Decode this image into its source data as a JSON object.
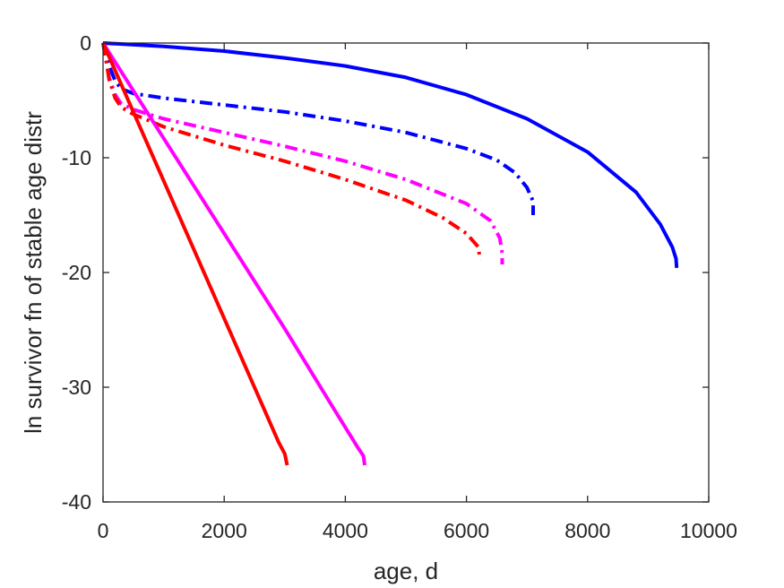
{
  "chart_data": {
    "type": "line",
    "title": "",
    "xlabel": "age, d",
    "ylabel": "ln survivor fn of stable age distr",
    "xlim": [
      0,
      10000
    ],
    "ylim": [
      -40,
      0
    ],
    "xticks": [
      0,
      2000,
      4000,
      6000,
      8000,
      10000
    ],
    "xtick_labels": [
      "0",
      "2000",
      "4000",
      "6000",
      "8000",
      "10000"
    ],
    "yticks": [
      0,
      -10,
      -20,
      -30,
      -40
    ],
    "ytick_labels": [
      "0",
      "-10",
      "-20",
      "-30",
      "-40"
    ],
    "grid": false,
    "legend": "none",
    "series": [
      {
        "color": "#0000ff",
        "dash": "solid",
        "points": [
          [
            0,
            0
          ],
          [
            1000,
            -0.3
          ],
          [
            2000,
            -0.7
          ],
          [
            3000,
            -1.3
          ],
          [
            4000,
            -2.0
          ],
          [
            5000,
            -3.0
          ],
          [
            6000,
            -4.5
          ],
          [
            7000,
            -6.6
          ],
          [
            8000,
            -9.5
          ],
          [
            8800,
            -13.0
          ],
          [
            9200,
            -15.8
          ],
          [
            9400,
            -17.8
          ],
          [
            9460,
            -18.8
          ],
          [
            9470,
            -19.6
          ]
        ]
      },
      {
        "color": "#0000ff",
        "dash": "dashdot",
        "points": [
          [
            0,
            0
          ],
          [
            50,
            -1.0
          ],
          [
            100,
            -2.0
          ],
          [
            200,
            -3.3
          ],
          [
            300,
            -4.0
          ],
          [
            500,
            -4.4
          ],
          [
            1000,
            -4.8
          ],
          [
            2000,
            -5.4
          ],
          [
            3000,
            -6.0
          ],
          [
            4000,
            -6.8
          ],
          [
            5000,
            -7.8
          ],
          [
            6000,
            -9.2
          ],
          [
            6500,
            -10.2
          ],
          [
            6800,
            -11.3
          ],
          [
            7000,
            -12.6
          ],
          [
            7100,
            -13.8
          ],
          [
            7100,
            -15.0
          ]
        ]
      },
      {
        "color": "#ff00ff",
        "dash": "dashdot",
        "points": [
          [
            0,
            0
          ],
          [
            50,
            -1.5
          ],
          [
            100,
            -3.0
          ],
          [
            200,
            -4.5
          ],
          [
            300,
            -5.3
          ],
          [
            500,
            -5.8
          ],
          [
            1000,
            -6.6
          ],
          [
            2000,
            -7.8
          ],
          [
            3000,
            -9.0
          ],
          [
            4000,
            -10.3
          ],
          [
            5000,
            -11.9
          ],
          [
            6000,
            -14.0
          ],
          [
            6400,
            -15.5
          ],
          [
            6550,
            -17.0
          ],
          [
            6590,
            -18.3
          ],
          [
            6590,
            -19.3
          ]
        ]
      },
      {
        "color": "#ff0000",
        "dash": "dashdot",
        "points": [
          [
            0,
            0
          ],
          [
            50,
            -1.5
          ],
          [
            100,
            -3.2
          ],
          [
            200,
            -4.8
          ],
          [
            300,
            -5.6
          ],
          [
            500,
            -6.2
          ],
          [
            1000,
            -7.3
          ],
          [
            2000,
            -8.9
          ],
          [
            3000,
            -10.3
          ],
          [
            4000,
            -11.9
          ],
          [
            5000,
            -13.7
          ],
          [
            5600,
            -15.2
          ],
          [
            6000,
            -16.6
          ],
          [
            6200,
            -17.8
          ],
          [
            6220,
            -18.9
          ]
        ]
      },
      {
        "color": "#ff00ff",
        "dash": "solid",
        "points": [
          [
            0,
            0
          ],
          [
            1000,
            -8.3
          ],
          [
            2000,
            -16.6
          ],
          [
            3000,
            -24.9
          ],
          [
            3800,
            -31.8
          ],
          [
            4200,
            -35.2
          ],
          [
            4300,
            -36.0
          ],
          [
            4320,
            -36.8
          ]
        ]
      },
      {
        "color": "#ff0000",
        "dash": "solid",
        "points": [
          [
            0,
            0
          ],
          [
            1000,
            -12.0
          ],
          [
            2000,
            -24.0
          ],
          [
            2900,
            -34.8
          ],
          [
            3000,
            -35.8
          ],
          [
            3040,
            -36.8
          ]
        ]
      }
    ]
  }
}
